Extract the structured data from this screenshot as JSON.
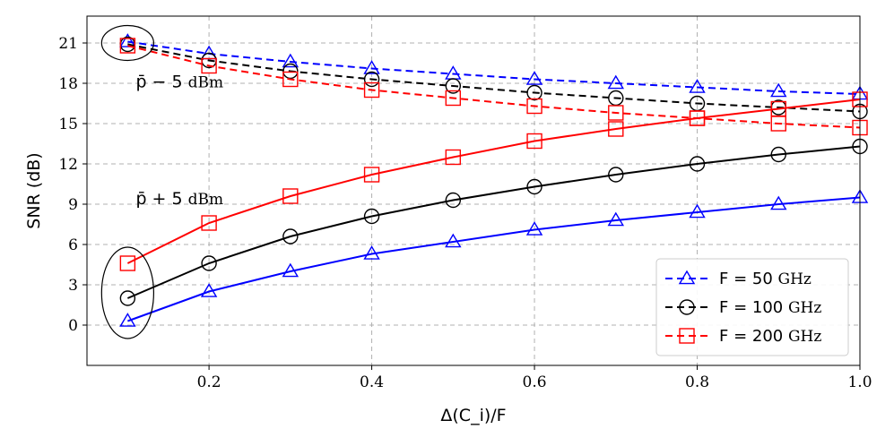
{
  "chart_data": {
    "type": "line",
    "xlabel": "Δ(C_i)/F",
    "ylabel": "SNR (dB)",
    "xlim": [
      0.05,
      1.0
    ],
    "ylim": [
      -3,
      23
    ],
    "grid": true,
    "x_ticks": [
      "0.2",
      "0.4",
      "0.6",
      "0.8",
      "1.0"
    ],
    "x_tick_values": [
      0.2,
      0.4,
      0.6,
      0.8,
      1.0
    ],
    "y_ticks": [
      "0",
      "3",
      "6",
      "9",
      "12",
      "15",
      "18",
      "21"
    ],
    "y_tick_values": [
      0,
      3,
      6,
      9,
      12,
      15,
      18,
      21
    ],
    "x": [
      0.1,
      0.2,
      0.3,
      0.4,
      0.5,
      0.6,
      0.7,
      0.8,
      0.9,
      1.0
    ],
    "series": [
      {
        "name": "F = 50 GHz",
        "group": "p-5",
        "linestyle": "dashed",
        "marker": "triangle",
        "color": "#0000ff",
        "values": [
          21.1,
          20.2,
          19.6,
          19.1,
          18.7,
          18.3,
          18.0,
          17.7,
          17.4,
          17.2
        ]
      },
      {
        "name": "F = 100 GHz",
        "group": "p-5",
        "linestyle": "dashed",
        "marker": "circle",
        "color": "#000000",
        "values": [
          20.9,
          19.7,
          18.9,
          18.3,
          17.8,
          17.3,
          16.9,
          16.5,
          16.2,
          15.9
        ]
      },
      {
        "name": "F = 200 GHz",
        "group": "p-5",
        "linestyle": "dashed",
        "marker": "square",
        "color": "#ff0000",
        "values": [
          20.8,
          19.3,
          18.3,
          17.5,
          16.9,
          16.3,
          15.8,
          15.4,
          15.0,
          14.7
        ]
      },
      {
        "name": "F = 50 GHz",
        "group": "p+5",
        "linestyle": "solid",
        "marker": "triangle",
        "color": "#0000ff",
        "values": [
          0.3,
          2.5,
          4.0,
          5.3,
          6.2,
          7.1,
          7.8,
          8.4,
          9.0,
          9.5
        ]
      },
      {
        "name": "F = 100 GHz",
        "group": "p+5",
        "linestyle": "solid",
        "marker": "circle",
        "color": "#000000",
        "values": [
          2.0,
          4.6,
          6.6,
          8.1,
          9.3,
          10.3,
          11.2,
          12.0,
          12.7,
          13.3
        ]
      },
      {
        "name": "F = 200 GHz",
        "group": "p+5",
        "linestyle": "solid",
        "marker": "square",
        "color": "#ff0000",
        "values": [
          4.6,
          7.6,
          9.6,
          11.2,
          12.5,
          13.7,
          14.6,
          15.4,
          16.1,
          16.8
        ]
      }
    ],
    "annotations": [
      {
        "label": "p̄ − 5",
        "unit": "dBm",
        "x": 0.11,
        "y": 17.7
      },
      {
        "label": "p̄ + 5",
        "unit": "dBm",
        "x": 0.11,
        "y": 9.0
      }
    ],
    "ellipses": [
      {
        "cx": 0.1,
        "cy": 21.0,
        "rx": 0.032,
        "ry": 1.3
      },
      {
        "cx": 0.1,
        "cy": 2.4,
        "rx": 0.032,
        "ry": 3.4
      }
    ],
    "legend": {
      "position": "lower-right",
      "entries": [
        {
          "prefix": "F = 50",
          "unit": "GHz",
          "marker": "triangle",
          "color": "#0000ff"
        },
        {
          "prefix": "F = 100",
          "unit": "GHz",
          "marker": "circle",
          "color": "#000000"
        },
        {
          "prefix": "F = 200",
          "unit": "GHz",
          "marker": "square",
          "color": "#ff0000"
        }
      ]
    }
  }
}
